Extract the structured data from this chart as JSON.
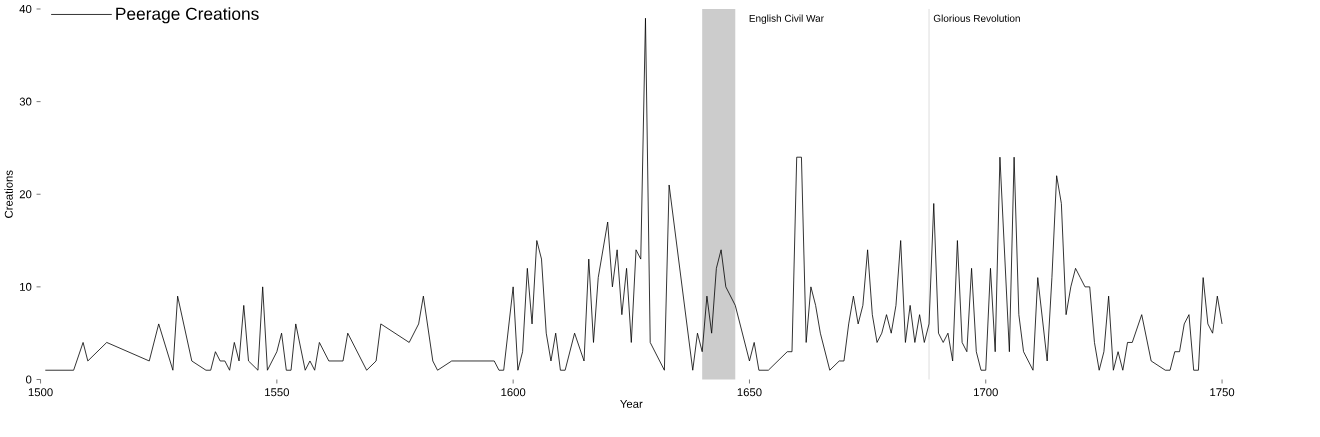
{
  "chart_data": {
    "type": "line",
    "xlabel": "Year",
    "ylabel": "Creations",
    "x": [
      1501,
      1507,
      1509,
      1510,
      1514,
      1523,
      1525,
      1528,
      1529,
      1532,
      1535,
      1536,
      1537,
      1538,
      1539,
      1540,
      1541,
      1542,
      1543,
      1544,
      1546,
      1547,
      1548,
      1550,
      1551,
      1552,
      1553,
      1554,
      1556,
      1557,
      1558,
      1559,
      1561,
      1564,
      1565,
      1569,
      1571,
      1572,
      1578,
      1580,
      1581,
      1583,
      1584,
      1587,
      1596,
      1597,
      1598,
      1600,
      1601,
      1602,
      1603,
      1604,
      1605,
      1606,
      1607,
      1608,
      1609,
      1610,
      1611,
      1613,
      1615,
      1616,
      1617,
      1618,
      1620,
      1621,
      1622,
      1623,
      1624,
      1625,
      1626,
      1627,
      1628,
      1629,
      1632,
      1633,
      1638,
      1639,
      1640,
      1641,
      1642,
      1643,
      1644,
      1645,
      1647,
      1650,
      1651,
      1652,
      1654,
      1658,
      1659,
      1660,
      1661,
      1662,
      1663,
      1664,
      1665,
      1667,
      1669,
      1670,
      1671,
      1672,
      1673,
      1674,
      1675,
      1676,
      1677,
      1678,
      1679,
      1680,
      1681,
      1682,
      1683,
      1684,
      1685,
      1686,
      1687,
      1688,
      1689,
      1690,
      1691,
      1692,
      1693,
      1694,
      1695,
      1696,
      1697,
      1698,
      1699,
      1700,
      1701,
      1702,
      1703,
      1705,
      1706,
      1707,
      1708,
      1710,
      1711,
      1713,
      1714,
      1715,
      1716,
      1717,
      1718,
      1719,
      1720,
      1721,
      1722,
      1723,
      1724,
      1725,
      1726,
      1727,
      1728,
      1729,
      1730,
      1731,
      1733,
      1735,
      1738,
      1739,
      1740,
      1741,
      1742,
      1743,
      1744,
      1745,
      1746,
      1747,
      1748,
      1749,
      1750
    ],
    "series": [
      {
        "name": "Peerage Creations",
        "color": "#000000",
        "values": [
          1,
          1,
          4,
          2,
          4,
          2,
          6,
          1,
          9,
          2,
          1,
          1,
          3,
          2,
          2,
          1,
          4,
          2,
          8,
          2,
          1,
          10,
          1,
          3,
          5,
          1,
          1,
          6,
          1,
          2,
          1,
          4,
          2,
          2,
          5,
          1,
          2,
          6,
          4,
          6,
          9,
          2,
          1,
          2,
          2,
          1,
          1,
          10,
          1,
          3,
          12,
          6,
          15,
          13,
          5,
          2,
          5,
          1,
          1,
          5,
          2,
          13,
          4,
          11,
          17,
          10,
          14,
          7,
          12,
          4,
          14,
          13,
          39,
          4,
          1,
          21,
          1,
          5,
          3,
          9,
          5,
          12,
          14,
          10,
          8,
          2,
          4,
          1,
          1,
          3,
          3,
          24,
          24,
          4,
          10,
          8,
          5,
          1,
          2,
          2,
          6,
          9,
          6,
          8,
          14,
          7,
          4,
          5,
          7,
          5,
          8,
          15,
          4,
          8,
          4,
          7,
          4,
          6,
          19,
          5,
          4,
          5,
          2,
          15,
          4,
          3,
          12,
          3,
          1,
          1,
          12,
          3,
          24,
          3,
          24,
          7,
          3,
          1,
          11,
          2,
          11,
          22,
          19,
          7,
          10,
          12,
          11,
          10,
          10,
          4,
          1,
          3,
          9,
          1,
          3,
          1,
          4,
          4,
          7,
          2,
          1,
          1,
          3,
          3,
          6,
          7,
          1,
          1,
          11,
          6,
          5,
          9,
          6
        ]
      }
    ],
    "xlim": [
      1500,
      1750
    ],
    "ylim": [
      0,
      40
    ],
    "xticks": [
      1500,
      1550,
      1600,
      1650,
      1700,
      1750
    ],
    "yticks": [
      0,
      10,
      20,
      30,
      40
    ],
    "bands": [
      {
        "axis": "x",
        "from": 1640,
        "to": 1647,
        "label": "English Civil War",
        "color": "#cccccc"
      }
    ],
    "ref_lines": [
      {
        "axis": "x",
        "value": 1688,
        "label": "Glorious Revolution",
        "color": "#c0c0c0"
      }
    ],
    "legend": "top left"
  }
}
